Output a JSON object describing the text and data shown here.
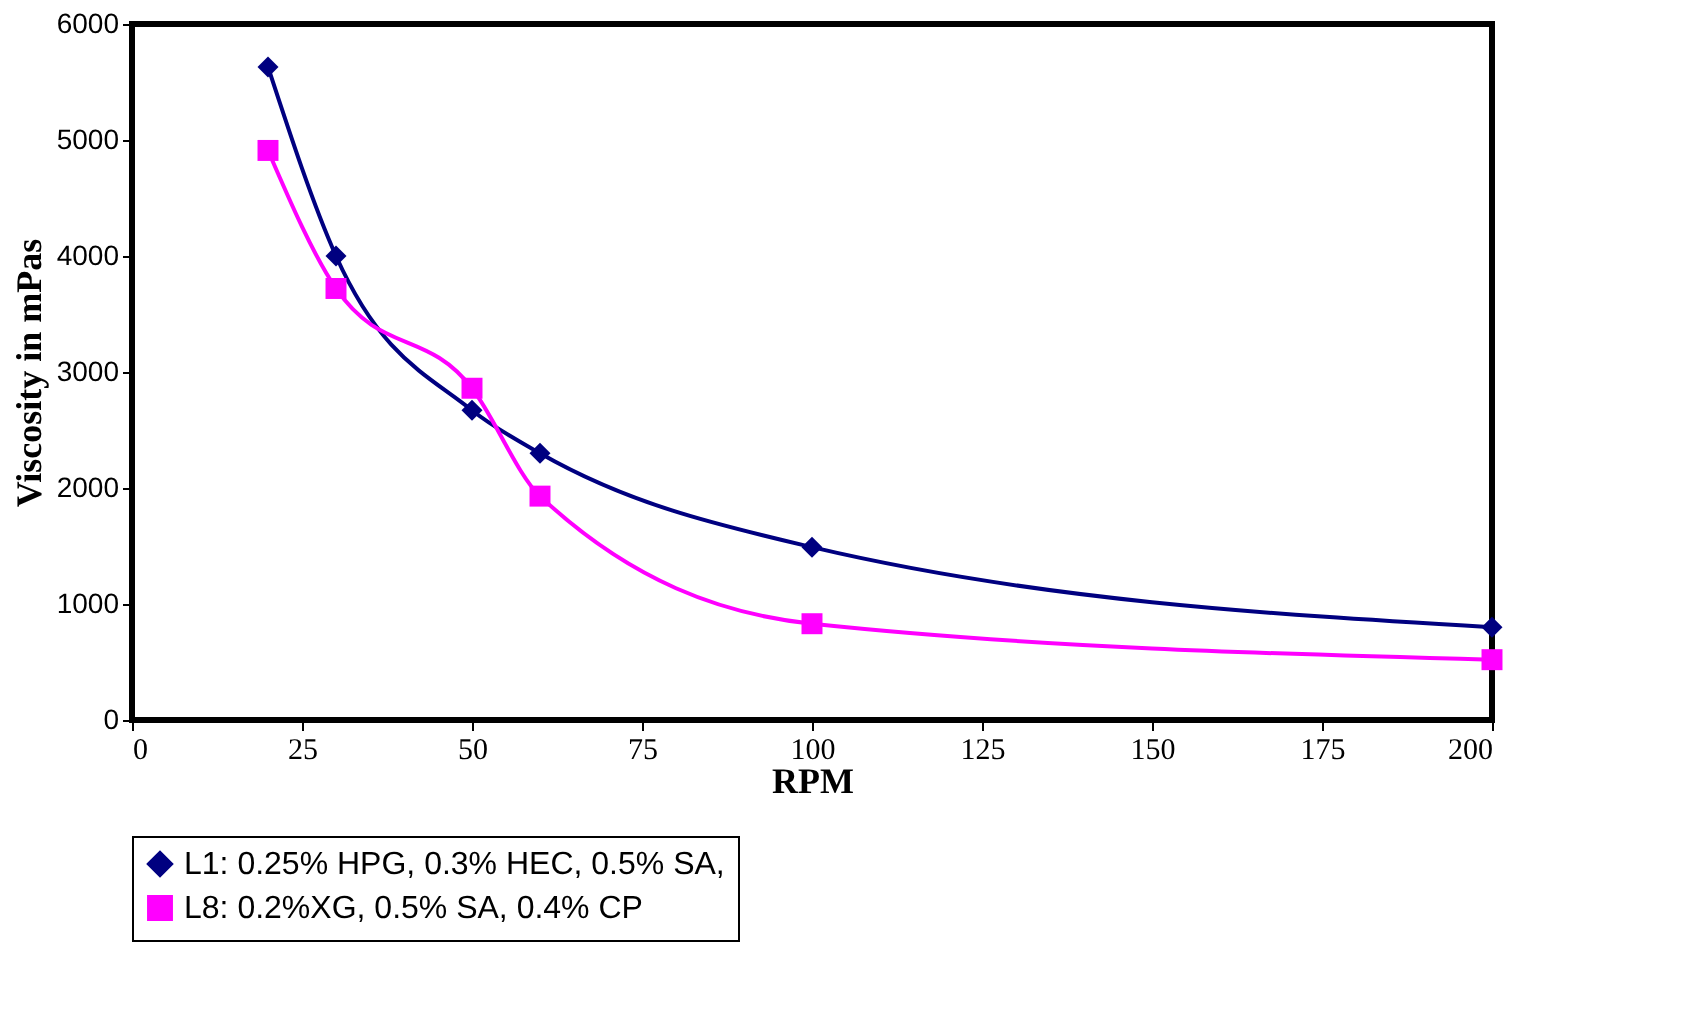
{
  "chart_data": {
    "type": "line",
    "xlabel": "RPM",
    "ylabel": "Viscosity in mPas",
    "x": [
      20,
      30,
      50,
      60,
      100,
      200
    ],
    "series": [
      {
        "name": "L1: 0.25% HPG, 0.3% HEC, 0.5% SA,",
        "color": "#000080",
        "marker": "diamond",
        "values": [
          5630,
          4000,
          2670,
          2300,
          1490,
          800
        ]
      },
      {
        "name": "L8: 0.2%XG, 0.5% SA, 0.4% CP",
        "color": "#ff00ff",
        "marker": "square",
        "values": [
          4910,
          3720,
          2860,
          1930,
          830,
          520
        ]
      }
    ],
    "xlim": [
      0,
      200
    ],
    "xticks": [
      0,
      25,
      50,
      75,
      100,
      125,
      150,
      175,
      200
    ],
    "ylim": [
      0,
      6000
    ],
    "yticks": [
      0,
      1000,
      2000,
      3000,
      4000,
      5000,
      6000
    ],
    "grid": false,
    "legend": "bottom",
    "line_style": "solid"
  }
}
